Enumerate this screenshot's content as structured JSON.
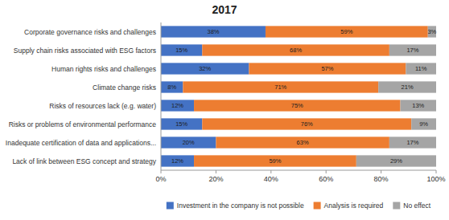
{
  "chart_data": {
    "type": "bar",
    "orientation": "horizontal",
    "stacked": true,
    "title": "2017",
    "categories": [
      "Corporate governance risks and challenges",
      "Supply chain risks associated with ESG factors",
      "Human rights risks and challenges",
      "Climate change risks",
      "Risks of resources lack (e.g. water)",
      "Risks or problems of environmental performance",
      "Inadequate certification of data and applications...",
      "Lack of link between ESG concept and strategy"
    ],
    "series": [
      {
        "name": "Investment in the company is not possible",
        "color": "#4472C4",
        "values": [
          38,
          15,
          32,
          8,
          12,
          15,
          20,
          12
        ],
        "value_labels": [
          "38%",
          "15%",
          "32%",
          "8%",
          "12%",
          "15%",
          "20%",
          "12%"
        ]
      },
      {
        "name": "Analysis is required",
        "color": "#ED7D31",
        "values": [
          59,
          68,
          57,
          71,
          75,
          76,
          63,
          59
        ],
        "value_labels": [
          "59%",
          "68%",
          "57%",
          "71%",
          "75%",
          "76%",
          "63%",
          "59%"
        ]
      },
      {
        "name": "No effect",
        "color": "#A5A5A5",
        "values": [
          3,
          17,
          11,
          21,
          13,
          9,
          17,
          29
        ],
        "value_labels": [
          "3%",
          "17%",
          "11%",
          "21%",
          "13%",
          "9%",
          "17%",
          "29%"
        ]
      }
    ],
    "xlim": [
      0,
      100
    ],
    "xticks": [
      {
        "value": 0,
        "label": "0%"
      },
      {
        "value": 20,
        "label": "20%"
      },
      {
        "value": 40,
        "label": "40%"
      },
      {
        "value": 60,
        "label": "60%"
      },
      {
        "value": 80,
        "label": "80%"
      },
      {
        "value": 100,
        "label": "100%"
      }
    ],
    "data_labels": true,
    "legend": "bottom",
    "grid": false
  }
}
